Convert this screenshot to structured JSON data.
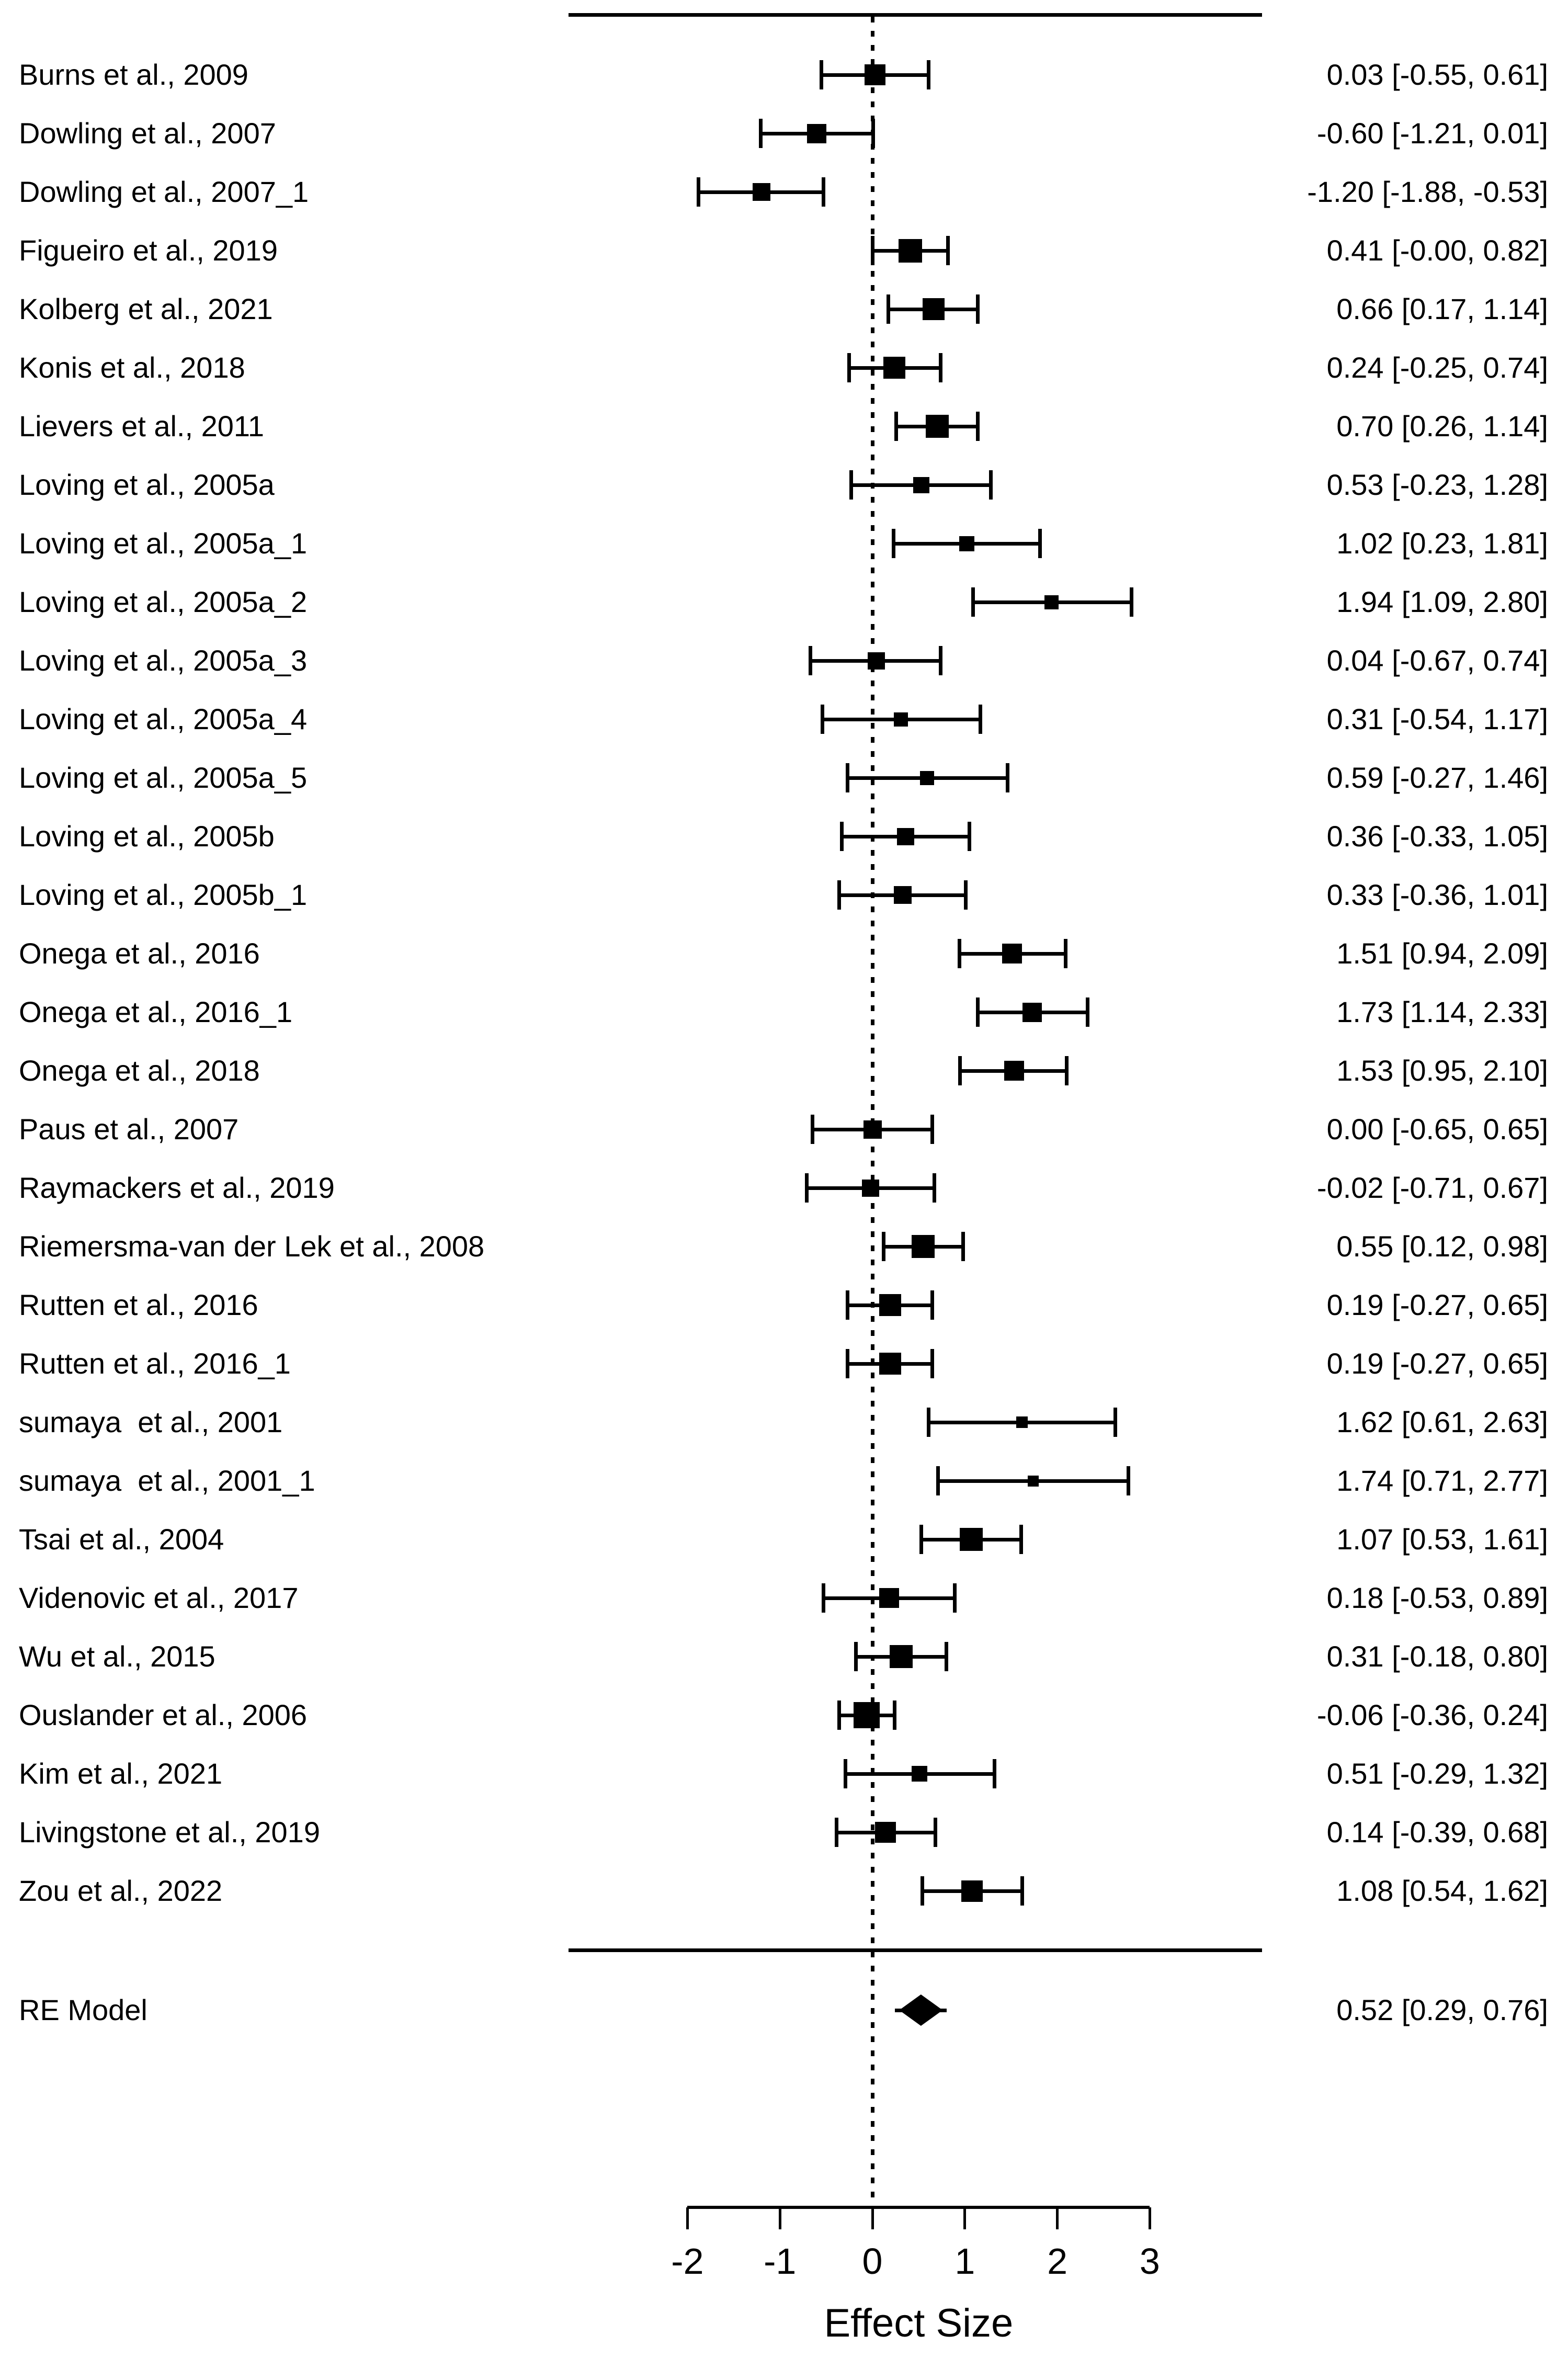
{
  "colors": {
    "foreground": "#000000",
    "background": "#ffffff"
  },
  "chart_data": {
    "type": "forest",
    "title": "",
    "xlabel": "Effect Size",
    "x_ticks": [
      -2,
      -1,
      0,
      1,
      2,
      3
    ],
    "xlim": [
      -2,
      3
    ],
    "reference_line": 0,
    "grid": false,
    "legend": false,
    "studies": [
      {
        "label": "Burns et al., 2009",
        "est": 0.03,
        "lo": -0.55,
        "hi": 0.61,
        "display": "0.03 [-0.55, 0.61]",
        "size": 40
      },
      {
        "label": "Dowling et al., 2007",
        "est": -0.6,
        "lo": -1.21,
        "hi": 0.01,
        "display": "-0.60 [-1.21, 0.01]",
        "size": 37
      },
      {
        "label": "Dowling et al., 2007_1",
        "est": -1.2,
        "lo": -1.88,
        "hi": -0.53,
        "display": "-1.20 [-1.88, -0.53]",
        "size": 34
      },
      {
        "label": "Figueiro et al., 2019",
        "est": 0.41,
        "lo": -0.0,
        "hi": 0.82,
        "display": "0.41 [-0.00, 0.82]",
        "size": 45
      },
      {
        "label": "Kolberg et al., 2021",
        "est": 0.66,
        "lo": 0.17,
        "hi": 1.14,
        "display": "0.66 [0.17, 1.14]",
        "size": 42
      },
      {
        "label": "Konis et al., 2018",
        "est": 0.24,
        "lo": -0.25,
        "hi": 0.74,
        "display": "0.24 [-0.25, 0.74]",
        "size": 42
      },
      {
        "label": "Lievers et al., 2011",
        "est": 0.7,
        "lo": 0.26,
        "hi": 1.14,
        "display": "0.70 [0.26, 1.14]",
        "size": 44
      },
      {
        "label": "Loving et al., 2005a",
        "est": 0.53,
        "lo": -0.23,
        "hi": 1.28,
        "display": "0.53 [-0.23, 1.28]",
        "size": 31
      },
      {
        "label": "Loving et al., 2005a_1",
        "est": 1.02,
        "lo": 0.23,
        "hi": 1.81,
        "display": "1.02 [0.23, 1.81]",
        "size": 29
      },
      {
        "label": "Loving et al., 2005a_2",
        "est": 1.94,
        "lo": 1.09,
        "hi": 2.8,
        "display": "1.94 [1.09, 2.80]",
        "size": 27
      },
      {
        "label": "Loving et al., 2005a_3",
        "est": 0.04,
        "lo": -0.67,
        "hi": 0.74,
        "display": "0.04 [-0.67, 0.74]",
        "size": 33
      },
      {
        "label": "Loving et al., 2005a_4",
        "est": 0.31,
        "lo": -0.54,
        "hi": 1.17,
        "display": "0.31 [-0.54, 1.17]",
        "size": 27
      },
      {
        "label": "Loving et al., 2005a_5",
        "est": 0.59,
        "lo": -0.27,
        "hi": 1.46,
        "display": "0.59 [-0.27, 1.46]",
        "size": 27
      },
      {
        "label": "Loving et al., 2005b",
        "est": 0.36,
        "lo": -0.33,
        "hi": 1.05,
        "display": "0.36 [-0.33, 1.05]",
        "size": 33
      },
      {
        "label": "Loving et al., 2005b_1",
        "est": 0.33,
        "lo": -0.36,
        "hi": 1.01,
        "display": "0.33 [-0.36, 1.01]",
        "size": 34
      },
      {
        "label": "Onega et al., 2016",
        "est": 1.51,
        "lo": 0.94,
        "hi": 2.09,
        "display": "1.51 [0.94, 2.09]",
        "size": 38
      },
      {
        "label": "Onega et al., 2016_1",
        "est": 1.73,
        "lo": 1.14,
        "hi": 2.33,
        "display": "1.73 [1.14, 2.33]",
        "size": 37
      },
      {
        "label": "Onega et al., 2018",
        "est": 1.53,
        "lo": 0.95,
        "hi": 2.1,
        "display": "1.53 [0.95, 2.10]",
        "size": 38
      },
      {
        "label": "Paus et al., 2007",
        "est": 0.0,
        "lo": -0.65,
        "hi": 0.65,
        "display": "0.00 [-0.65, 0.65]",
        "size": 35
      },
      {
        "label": "Raymackers et al., 2019",
        "est": -0.02,
        "lo": -0.71,
        "hi": 0.67,
        "display": "-0.02 [-0.71, 0.67]",
        "size": 33
      },
      {
        "label": "Riemersma-van der Lek et al., 2008",
        "est": 0.55,
        "lo": 0.12,
        "hi": 0.98,
        "display": "0.55 [0.12, 0.98]",
        "size": 44
      },
      {
        "label": "Rutten et al., 2016",
        "est": 0.19,
        "lo": -0.27,
        "hi": 0.65,
        "display": "0.19 [-0.27, 0.65]",
        "size": 42
      },
      {
        "label": "Rutten et al., 2016_1",
        "est": 0.19,
        "lo": -0.27,
        "hi": 0.65,
        "display": "0.19 [-0.27, 0.65]",
        "size": 42
      },
      {
        "label": "sumaya  et al., 2001",
        "est": 1.62,
        "lo": 0.61,
        "hi": 2.63,
        "display": "1.62 [0.61, 2.63]",
        "size": 22
      },
      {
        "label": "sumaya  et al., 2001_1",
        "est": 1.74,
        "lo": 0.71,
        "hi": 2.77,
        "display": "1.74 [0.71, 2.77]",
        "size": 21
      },
      {
        "label": "Tsai et al., 2004",
        "est": 1.07,
        "lo": 0.53,
        "hi": 1.61,
        "display": "1.07 [0.53, 1.61]",
        "size": 44
      },
      {
        "label": "Videnovic et al., 2017",
        "est": 0.18,
        "lo": -0.53,
        "hi": 0.89,
        "display": "0.18 [-0.53, 0.89]",
        "size": 38
      },
      {
        "label": "Wu et al., 2015",
        "est": 0.31,
        "lo": -0.18,
        "hi": 0.8,
        "display": "0.31 [-0.18, 0.80]",
        "size": 44
      },
      {
        "label": "Ouslander et al., 2006",
        "est": -0.06,
        "lo": -0.36,
        "hi": 0.24,
        "display": "-0.06 [-0.36, 0.24]",
        "size": 50
      },
      {
        "label": "Kim et al., 2021",
        "est": 0.51,
        "lo": -0.29,
        "hi": 1.32,
        "display": "0.51 [-0.29, 1.32]",
        "size": 30
      },
      {
        "label": "Livingstone et al., 2019",
        "est": 0.14,
        "lo": -0.39,
        "hi": 0.68,
        "display": "0.14 [-0.39, 0.68]",
        "size": 40
      },
      {
        "label": "Zou et al., 2022",
        "est": 1.08,
        "lo": 0.54,
        "hi": 1.62,
        "display": "1.08 [0.54, 1.62]",
        "size": 41
      }
    ],
    "summary": {
      "label": "RE Model",
      "est": 0.52,
      "lo": 0.29,
      "hi": 0.76,
      "display": "0.52 [0.29, 0.76]"
    }
  }
}
